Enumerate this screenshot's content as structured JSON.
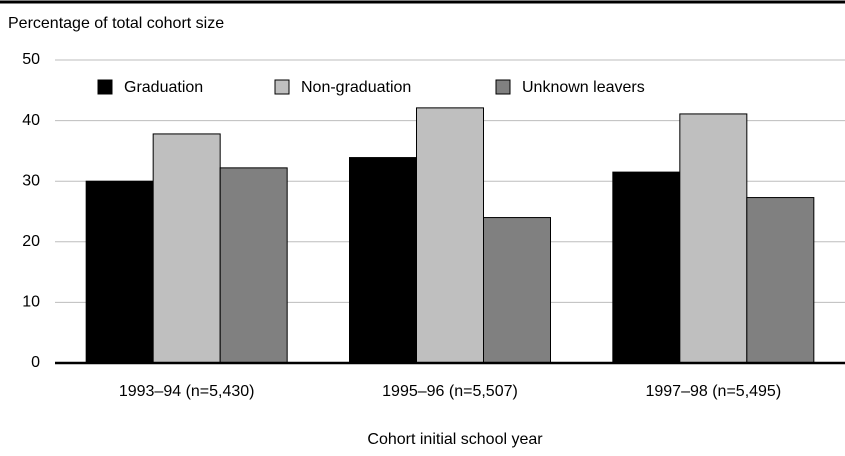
{
  "chart_data": {
    "type": "bar",
    "y_label": "Percentage of total cohort size",
    "x_label": "Cohort initial school year",
    "categories": [
      "1993–94 (n=5,430)",
      "1995–96 (n=5,507)",
      "1997–98 (n=5,495)"
    ],
    "series": [
      {
        "name": "Graduation",
        "color": "#000000",
        "values": [
          30.0,
          33.9,
          31.5
        ]
      },
      {
        "name": "Non-graduation",
        "color": "#bfbfbf",
        "values": [
          37.8,
          42.1,
          41.1
        ]
      },
      {
        "name": "Unknown leavers",
        "color": "#808080",
        "values": [
          32.2,
          24.0,
          27.3
        ]
      }
    ],
    "ylim": [
      0,
      50
    ],
    "yticks": [
      0,
      10,
      20,
      30,
      40,
      50
    ],
    "grid": true,
    "legend": "top"
  }
}
